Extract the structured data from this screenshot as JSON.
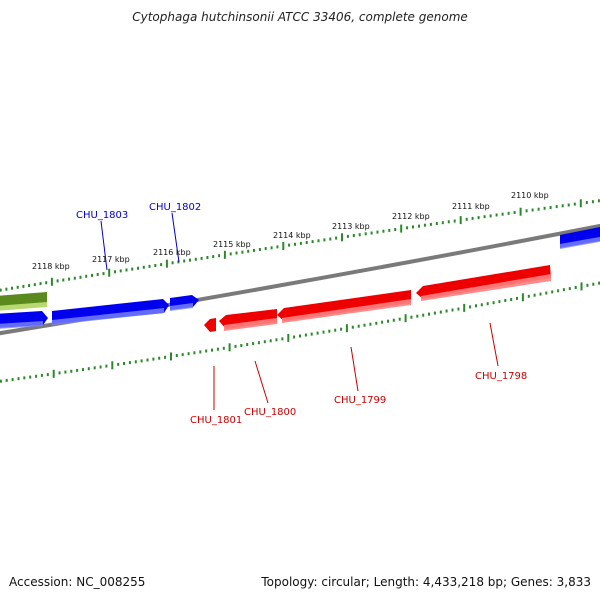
{
  "title": "Cytophaga hutchinsonii ATCC 33406, complete genome",
  "footer": {
    "accession": "Accession: NC_008255",
    "summary": "Topology: circular; Length: 4,433,218 bp; Genes: 3,833"
  },
  "colors": {
    "forward_gene": "#0000ee",
    "reverse_gene": "#ee0000",
    "other_feature": "#5a8a1e",
    "backbone": "#7a7a7a",
    "tick": "#2a8a2a"
  },
  "kbp_labels": [
    "2118 kbp",
    "2117 kbp",
    "2116 kbp",
    "2115 kbp",
    "2114 kbp",
    "2113 kbp",
    "2112 kbp",
    "2111 kbp",
    "2110 kbp"
  ],
  "forward_gene_labels": [
    "CHU_1803",
    "CHU_1802"
  ],
  "reverse_gene_labels": [
    "CHU_1801",
    "CHU_1800",
    "CHU_1799",
    "CHU_1798"
  ]
}
